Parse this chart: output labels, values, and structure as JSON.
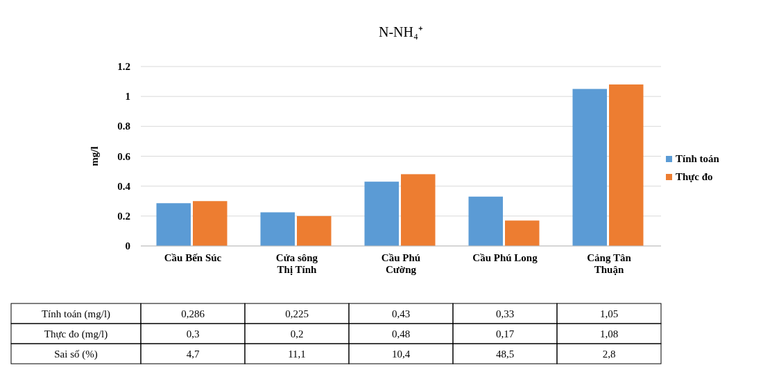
{
  "chart_data": {
    "type": "bar",
    "title": "N-NH₄⁺",
    "ylabel": "mg/l",
    "categories": [
      "Cầu Bến Súc",
      "Cửa sông Thị Tính",
      "Cầu Phú Cường",
      "Cầu Phú Long",
      "Cảng Tân Thuận"
    ],
    "series": [
      {
        "name": "Tính toán",
        "color": "#5b9bd5",
        "values": [
          0.286,
          0.225,
          0.43,
          0.33,
          1.05
        ],
        "value_labels": [
          "0,286",
          "0,225",
          "0,43",
          "0,33",
          "1,05"
        ]
      },
      {
        "name": "Thực đo",
        "color": "#ed7d31",
        "values": [
          0.3,
          0.2,
          0.48,
          0.17,
          1.08
        ],
        "value_labels": [
          "0,3",
          "0,2",
          "0,48",
          "0,17",
          "1,08"
        ]
      }
    ],
    "ylim": [
      0,
      1.2
    ],
    "yticks": [
      0,
      0.2,
      0.4,
      0.6,
      0.8,
      1,
      1.2
    ],
    "grid": "y",
    "legend": "right",
    "annotations": [
      "Tính toán (mg/l)",
      "Thực đo (mg/l)",
      "Sai số (%)",
      "4,7",
      "11,1",
      "10,4",
      "48,5",
      "2,8"
    ]
  }
}
